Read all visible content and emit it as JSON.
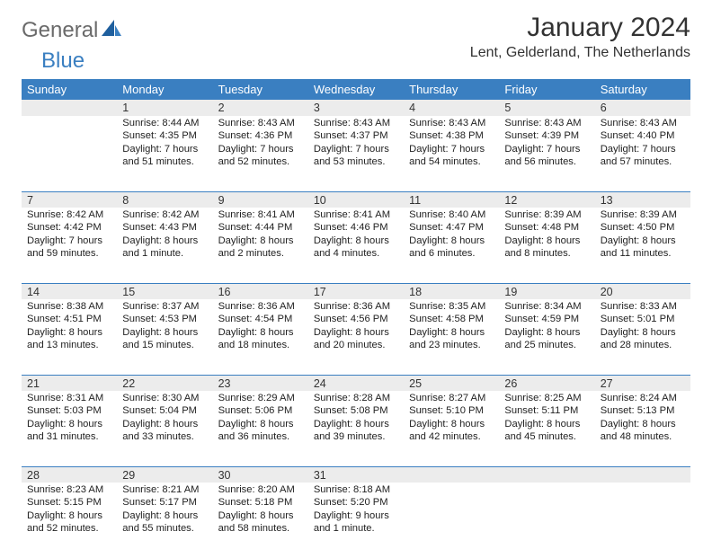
{
  "logo": {
    "text1": "General",
    "text2": "Blue"
  },
  "title": "January 2024",
  "subtitle": "Lent, Gelderland, The Netherlands",
  "colors": {
    "header_bg": "#3a7fc1",
    "header_fg": "#ffffff",
    "shade": "#ececec",
    "rule": "#3a7fc1",
    "logo_gray": "#6a6a6a",
    "logo_blue": "#3a7fc1"
  },
  "weekdays": [
    "Sunday",
    "Monday",
    "Tuesday",
    "Wednesday",
    "Thursday",
    "Friday",
    "Saturday"
  ],
  "start_offset": 1,
  "days": [
    {
      "n": 1,
      "sunrise": "8:44 AM",
      "sunset": "4:35 PM",
      "daylight": "7 hours and 51 minutes."
    },
    {
      "n": 2,
      "sunrise": "8:43 AM",
      "sunset": "4:36 PM",
      "daylight": "7 hours and 52 minutes."
    },
    {
      "n": 3,
      "sunrise": "8:43 AM",
      "sunset": "4:37 PM",
      "daylight": "7 hours and 53 minutes."
    },
    {
      "n": 4,
      "sunrise": "8:43 AM",
      "sunset": "4:38 PM",
      "daylight": "7 hours and 54 minutes."
    },
    {
      "n": 5,
      "sunrise": "8:43 AM",
      "sunset": "4:39 PM",
      "daylight": "7 hours and 56 minutes."
    },
    {
      "n": 6,
      "sunrise": "8:43 AM",
      "sunset": "4:40 PM",
      "daylight": "7 hours and 57 minutes."
    },
    {
      "n": 7,
      "sunrise": "8:42 AM",
      "sunset": "4:42 PM",
      "daylight": "7 hours and 59 minutes."
    },
    {
      "n": 8,
      "sunrise": "8:42 AM",
      "sunset": "4:43 PM",
      "daylight": "8 hours and 1 minute."
    },
    {
      "n": 9,
      "sunrise": "8:41 AM",
      "sunset": "4:44 PM",
      "daylight": "8 hours and 2 minutes."
    },
    {
      "n": 10,
      "sunrise": "8:41 AM",
      "sunset": "4:46 PM",
      "daylight": "8 hours and 4 minutes."
    },
    {
      "n": 11,
      "sunrise": "8:40 AM",
      "sunset": "4:47 PM",
      "daylight": "8 hours and 6 minutes."
    },
    {
      "n": 12,
      "sunrise": "8:39 AM",
      "sunset": "4:48 PM",
      "daylight": "8 hours and 8 minutes."
    },
    {
      "n": 13,
      "sunrise": "8:39 AM",
      "sunset": "4:50 PM",
      "daylight": "8 hours and 11 minutes."
    },
    {
      "n": 14,
      "sunrise": "8:38 AM",
      "sunset": "4:51 PM",
      "daylight": "8 hours and 13 minutes."
    },
    {
      "n": 15,
      "sunrise": "8:37 AM",
      "sunset": "4:53 PM",
      "daylight": "8 hours and 15 minutes."
    },
    {
      "n": 16,
      "sunrise": "8:36 AM",
      "sunset": "4:54 PM",
      "daylight": "8 hours and 18 minutes."
    },
    {
      "n": 17,
      "sunrise": "8:36 AM",
      "sunset": "4:56 PM",
      "daylight": "8 hours and 20 minutes."
    },
    {
      "n": 18,
      "sunrise": "8:35 AM",
      "sunset": "4:58 PM",
      "daylight": "8 hours and 23 minutes."
    },
    {
      "n": 19,
      "sunrise": "8:34 AM",
      "sunset": "4:59 PM",
      "daylight": "8 hours and 25 minutes."
    },
    {
      "n": 20,
      "sunrise": "8:33 AM",
      "sunset": "5:01 PM",
      "daylight": "8 hours and 28 minutes."
    },
    {
      "n": 21,
      "sunrise": "8:31 AM",
      "sunset": "5:03 PM",
      "daylight": "8 hours and 31 minutes."
    },
    {
      "n": 22,
      "sunrise": "8:30 AM",
      "sunset": "5:04 PM",
      "daylight": "8 hours and 33 minutes."
    },
    {
      "n": 23,
      "sunrise": "8:29 AM",
      "sunset": "5:06 PM",
      "daylight": "8 hours and 36 minutes."
    },
    {
      "n": 24,
      "sunrise": "8:28 AM",
      "sunset": "5:08 PM",
      "daylight": "8 hours and 39 minutes."
    },
    {
      "n": 25,
      "sunrise": "8:27 AM",
      "sunset": "5:10 PM",
      "daylight": "8 hours and 42 minutes."
    },
    {
      "n": 26,
      "sunrise": "8:25 AM",
      "sunset": "5:11 PM",
      "daylight": "8 hours and 45 minutes."
    },
    {
      "n": 27,
      "sunrise": "8:24 AM",
      "sunset": "5:13 PM",
      "daylight": "8 hours and 48 minutes."
    },
    {
      "n": 28,
      "sunrise": "8:23 AM",
      "sunset": "5:15 PM",
      "daylight": "8 hours and 52 minutes."
    },
    {
      "n": 29,
      "sunrise": "8:21 AM",
      "sunset": "5:17 PM",
      "daylight": "8 hours and 55 minutes."
    },
    {
      "n": 30,
      "sunrise": "8:20 AM",
      "sunset": "5:18 PM",
      "daylight": "8 hours and 58 minutes."
    },
    {
      "n": 31,
      "sunrise": "8:18 AM",
      "sunset": "5:20 PM",
      "daylight": "9 hours and 1 minute."
    }
  ],
  "labels": {
    "sunrise": "Sunrise:",
    "sunset": "Sunset:",
    "daylight": "Daylight:"
  }
}
